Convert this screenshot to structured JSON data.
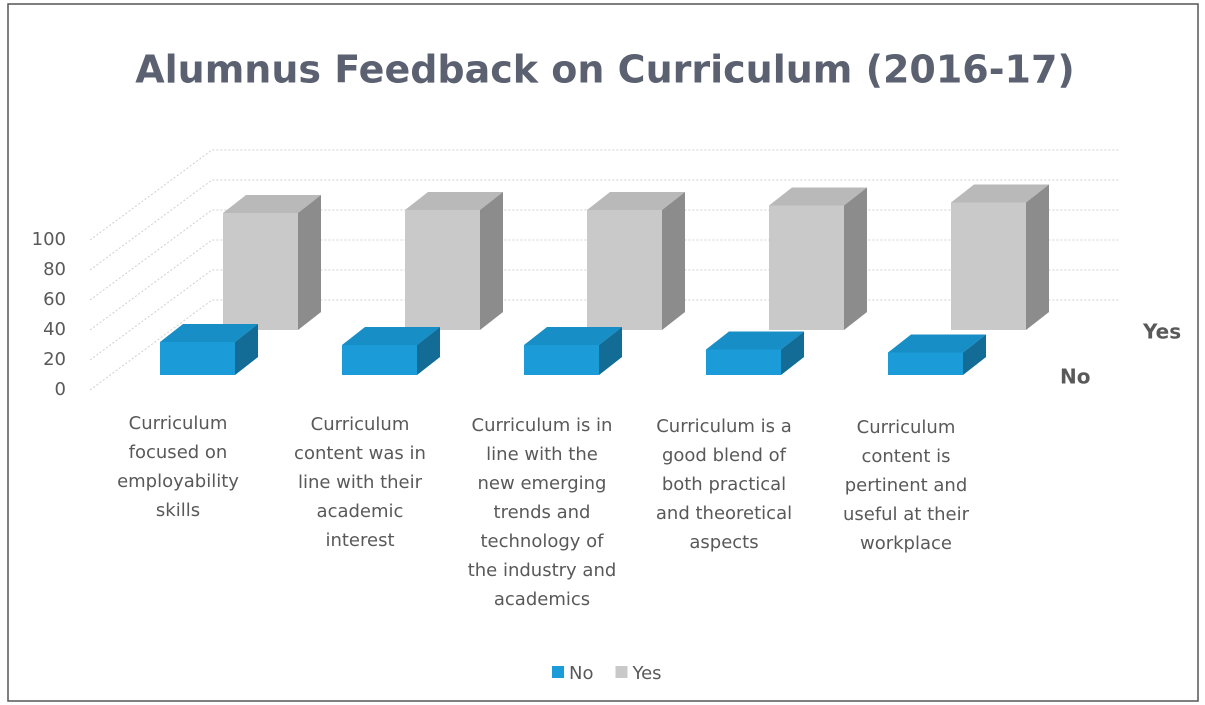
{
  "chart_data": {
    "type": "bar3d",
    "title": "Alumnus Feedback on Curriculum (2016-17)",
    "categories": [
      "Curriculum focused on employability skills",
      "Curriculum content was in line with their academic interest",
      "Curriculum is in line with the new emerging trends and technology of the industry and academics",
      "Curriculum is a good blend of both practical and theoretical aspects",
      "Curriculum content is pertinent and useful at their workplace"
    ],
    "series": [
      {
        "name": "No",
        "color": "#1b9bd7",
        "values": [
          22,
          20,
          20,
          17,
          15
        ]
      },
      {
        "name": "Yes",
        "color": "#c9c9c9",
        "values": [
          78,
          80,
          80,
          83,
          85
        ]
      }
    ],
    "ylim": [
      0,
      100
    ],
    "yticks": [
      0,
      20,
      40,
      60,
      80,
      100
    ],
    "grid": true,
    "legend": "bottom"
  }
}
